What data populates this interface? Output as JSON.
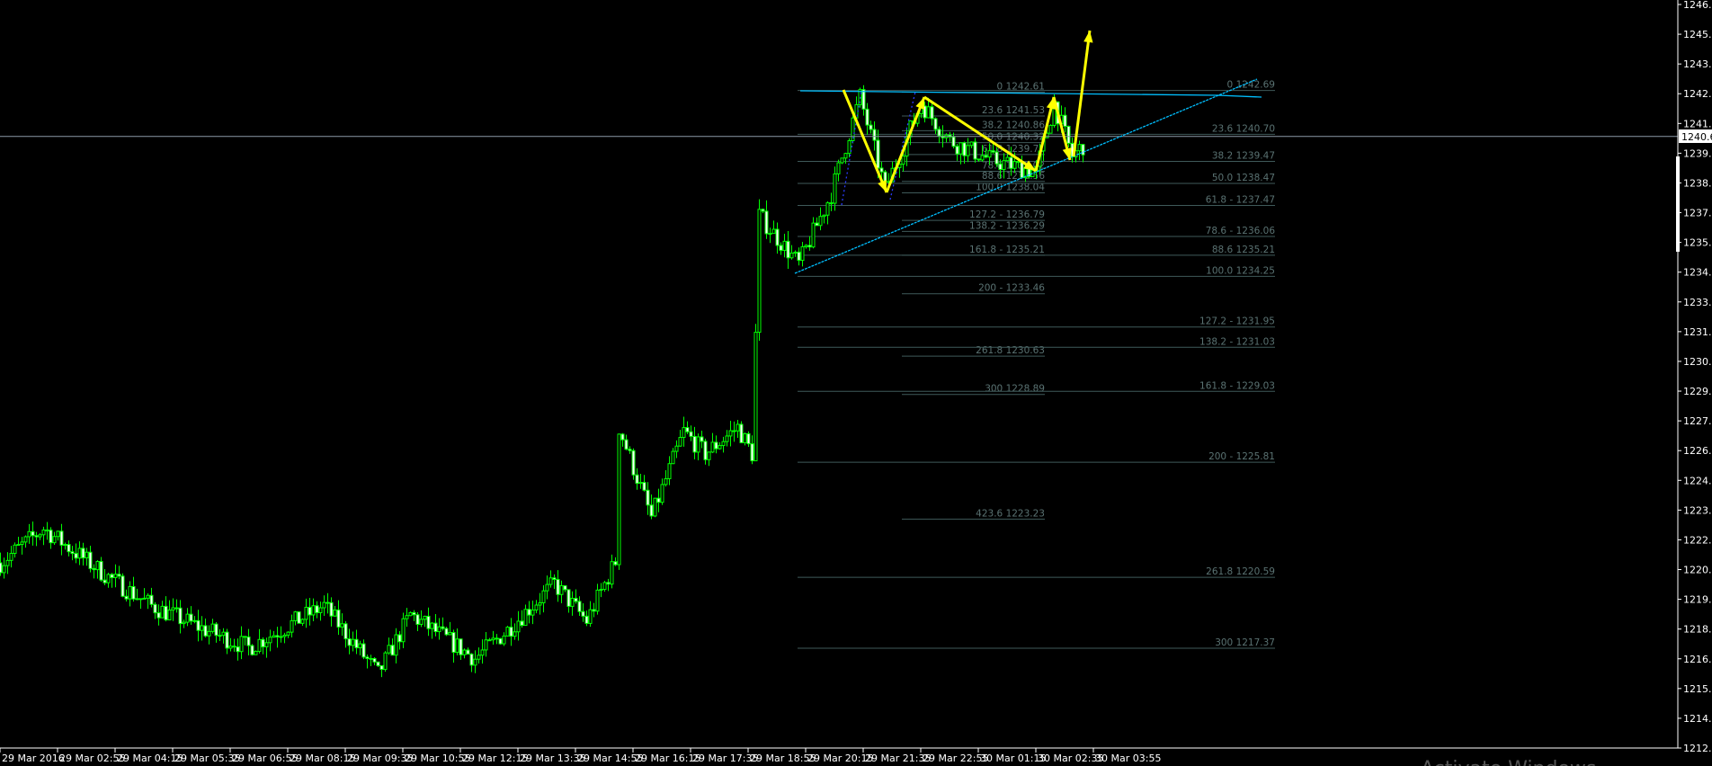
{
  "chart_data": {
    "type": "candlestick",
    "colors": {
      "background": "#000000",
      "candle": "#00ff00",
      "bull_body": "#000000",
      "bear_body": "#ffffff",
      "axis": "#ffffff",
      "fib": "#5a7272",
      "trendline": "#00bfff",
      "arrows": "#ffff00",
      "dotted": "#2a3cff",
      "price_line": "#8c9aa8"
    },
    "grid": false,
    "ylim": [
      1212.84,
      1246.59
    ],
    "y_ticks": [
      "1246.59",
      "1245.24",
      "1243.89",
      "1242.54",
      "1241.19",
      "1239.84",
      "1238.49",
      "1237.14",
      "1235.79",
      "1234.44",
      "1233.09",
      "1231.74",
      "1230.39",
      "1229.04",
      "1227.69",
      "1226.34",
      "1224.99",
      "1223.64",
      "1222.29",
      "1220.94",
      "1219.59",
      "1218.24",
      "1216.89",
      "1215.54",
      "1214.19",
      "1212.84"
    ],
    "x_ticks": [
      "29 Mar 2016",
      "29 Mar 02:55",
      "29 Mar 04:15",
      "29 Mar 05:35",
      "29 Mar 06:55",
      "29 Mar 08:15",
      "29 Mar 09:35",
      "29 Mar 10:55",
      "29 Mar 12:15",
      "29 Mar 13:35",
      "29 Mar 14:55",
      "29 Mar 16:15",
      "29 Mar 17:35",
      "29 Mar 18:55",
      "29 Mar 20:15",
      "29 Mar 21:35",
      "29 Mar 22:55",
      "30 Mar 01:15",
      "30 Mar 02:35",
      "30 Mar 03:55"
    ],
    "current_price": "1240.60",
    "price_path": [
      [
        "29 01:35",
        1221.25
      ],
      [
        "29 02:35",
        1222.8
      ],
      [
        "29 04:05",
        1220.6
      ],
      [
        "29 05:05",
        1219.3
      ],
      [
        "29 06:20",
        1218.2
      ],
      [
        "29 07:20",
        1217.4
      ],
      [
        "29 09:05",
        1219.3
      ],
      [
        "29 10:20",
        1216.2
      ],
      [
        "29 11:05",
        1218.9
      ],
      [
        "29 12:35",
        1216.9
      ],
      [
        "29 13:20",
        1218.2
      ],
      [
        "29 14:25",
        1220.3
      ],
      [
        "29 15:10",
        1218.6
      ],
      [
        "29 15:50",
        1221.3
      ],
      [
        "29 15:55",
        1227.4
      ],
      [
        "29 16:40",
        1223.3
      ],
      [
        "29 17:25",
        1227.2
      ],
      [
        "29 17:55",
        1226.2
      ],
      [
        "29 18:40",
        1227.4
      ],
      [
        "29 19:00",
        1226.2
      ],
      [
        "29 19:10",
        1237.0
      ],
      [
        "29 20:05",
        1234.8
      ],
      [
        "29 20:50",
        1238.0
      ],
      [
        "29 21:30",
        1242.4
      ],
      [
        "29 22:05",
        1238.2
      ],
      [
        "29 22:55",
        1242.1
      ],
      [
        "29 23:35",
        1240.4
      ],
      [
        "30 01:35",
        1239.5
      ],
      [
        "30 02:35",
        1239.0
      ],
      [
        "30 03:00",
        1242.1
      ],
      [
        "30 03:25",
        1239.7
      ],
      [
        "30 03:40",
        1240.2
      ]
    ],
    "fib_sets": [
      {
        "levels": [
          [
            "0 1242.61",
            1242.61
          ],
          [
            "23.6 1241.53",
            1241.53
          ],
          [
            "38.2 1240.86",
            1240.86
          ],
          [
            "50.0 1240.32",
            1240.32
          ],
          [
            "61.8 1239.78",
            1239.78
          ],
          [
            "78.6 1239.02",
            1239.02
          ],
          [
            "88.6 1238.56",
            1238.56
          ],
          [
            "100.0 1238.04",
            1238.04
          ],
          [
            "127.2 - 1236.79",
            1236.79
          ],
          [
            "138.2 - 1236.29",
            1236.29
          ],
          [
            "161.8 -  1235.21",
            1235.21
          ],
          [
            "200 - 1233.46",
            1233.46
          ],
          [
            "261.8 1230.63",
            1230.63
          ],
          [
            "300 1228.89",
            1228.89
          ],
          [
            "423.6 1223.23",
            1223.23
          ]
        ]
      },
      {
        "levels": [
          [
            "0 1242.69",
            1242.69
          ],
          [
            "23.6 1240.70",
            1240.7
          ],
          [
            "38.2 1239.47",
            1239.47
          ],
          [
            "50.0 1238.47",
            1238.47
          ],
          [
            "61.8 - 1237.47",
            1237.47
          ],
          [
            "78.6 - 1236.06",
            1236.06
          ],
          [
            "88.6 1235.21",
            1235.21
          ],
          [
            "100.0 1234.25",
            1234.25
          ],
          [
            "127.2 - 1231.95",
            1231.95
          ],
          [
            "138.2 - 1231.03",
            1231.03
          ],
          [
            "161.8 -  1229.03",
            1229.03
          ],
          [
            "200 - 1225.81",
            1225.81
          ],
          [
            "261.8 1220.59",
            1220.59
          ],
          [
            "300 1217.37",
            1217.37
          ]
        ]
      }
    ]
  },
  "watermark": "Activate Windows"
}
